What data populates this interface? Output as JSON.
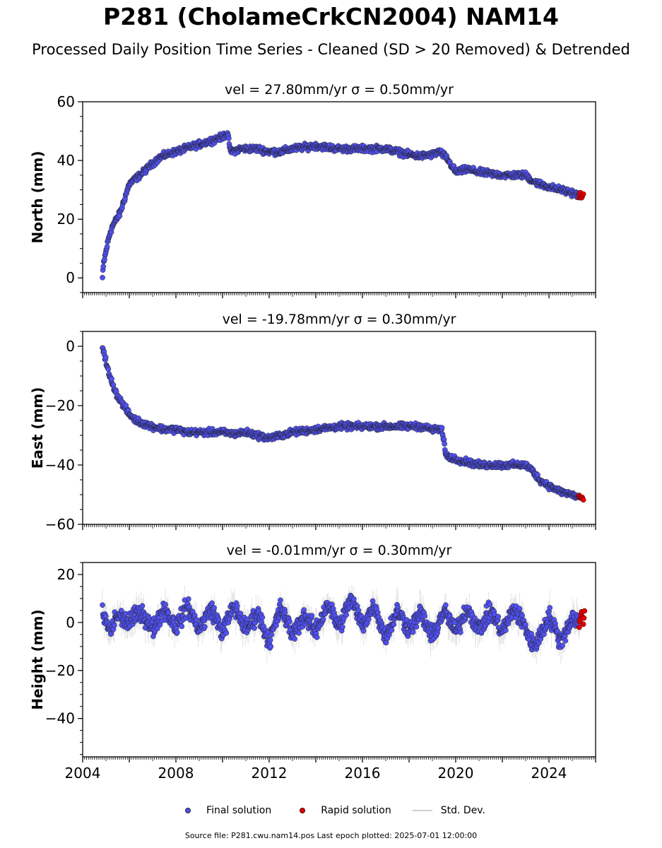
{
  "title": "P281 (CholameCrkCN2004) NAM14",
  "subtitle": "Processed Daily Position Time Series - Cleaned (SD > 20 Removed) & Detrended",
  "colors": {
    "final": "#5050f0",
    "rapid": "#e00000",
    "stddev": "#cccccc",
    "edge": "#222222"
  },
  "legend": {
    "final": "Final solution",
    "rapid": "Rapid solution",
    "stddev": "Std. Dev."
  },
  "footer": "Source file: P281.cwu.nam14.pos  Last epoch plotted: 2025-07-01 12:00:00",
  "chart_data": [
    {
      "type": "scatter",
      "component": "north",
      "title": "vel = 27.80mm/yr   σ = 0.50mm/yr",
      "ylabel": "North (mm)",
      "xlim": [
        2004.0,
        2026.0
      ],
      "ylim": [
        -5,
        60
      ],
      "yticks": [
        0,
        20,
        40,
        60
      ],
      "xticks": [
        2004,
        2008,
        2012,
        2016,
        2020,
        2024
      ],
      "show_xtick_labels": false,
      "series": [
        {
          "kind": "final",
          "x": [
            2004.85,
            2004.9,
            2005.0,
            2005.1,
            2005.2,
            2005.3,
            2005.45,
            2005.6,
            2006.0,
            2006.3,
            2006.6,
            2007.0,
            2007.3,
            2007.6,
            2008.0,
            2008.4,
            2008.8,
            2009.2,
            2009.6,
            2010.0,
            2010.2,
            2010.35,
            2010.8,
            2011.5,
            2012.0,
            2012.5,
            2013.0,
            2014.0,
            2015.0,
            2016.0,
            2017.0,
            2017.5,
            2018.0,
            2018.5,
            2019.0,
            2019.3,
            2019.6,
            2020.0,
            2020.5,
            2021.0,
            2022.0,
            2022.5,
            2023.0,
            2023.3,
            2023.6,
            2024.0,
            2024.5,
            2025.0,
            2025.3
          ],
          "y": [
            0,
            5,
            9,
            13,
            16,
            18,
            20,
            22,
            32,
            34,
            36,
            39,
            41,
            42,
            43,
            44,
            45,
            46,
            47,
            48,
            49.5,
            43,
            44,
            44,
            43,
            43,
            44,
            45,
            44,
            44,
            44,
            43,
            42,
            41.5,
            42,
            43,
            41,
            36,
            37,
            36,
            35,
            35,
            35,
            33,
            32,
            31,
            30,
            29,
            28
          ],
          "sd": 1.2
        },
        {
          "kind": "rapid",
          "x": [
            2025.3,
            2025.36,
            2025.42,
            2025.48
          ],
          "y": [
            27.8,
            28.3,
            27.5,
            28.0
          ],
          "sd": 1.0
        }
      ]
    },
    {
      "type": "scatter",
      "component": "east",
      "title": "vel = -19.78mm/yr   σ = 0.30mm/yr",
      "ylabel": "East (mm)",
      "xlim": [
        2004.0,
        2026.0
      ],
      "ylim": [
        -60,
        5
      ],
      "yticks": [
        0,
        -20,
        -40,
        -60
      ],
      "xticks": [
        2004,
        2008,
        2012,
        2016,
        2020,
        2024
      ],
      "show_xtick_labels": false,
      "series": [
        {
          "kind": "final",
          "x": [
            2004.85,
            2004.95,
            2005.05,
            2005.15,
            2005.3,
            2005.45,
            2005.6,
            2006.0,
            2006.3,
            2006.6,
            2007.0,
            2007.5,
            2008.0,
            2008.5,
            2009.0,
            2009.5,
            2010.0,
            2010.5,
            2011.0,
            2011.5,
            2012.0,
            2012.5,
            2013.0,
            2013.5,
            2014.0,
            2014.5,
            2015.0,
            2015.5,
            2016.0,
            2016.5,
            2017.0,
            2017.5,
            2018.0,
            2018.5,
            2019.0,
            2019.4,
            2019.6,
            2020.0,
            2020.5,
            2021.0,
            2021.5,
            2022.0,
            2022.5,
            2023.0,
            2023.3,
            2023.6,
            2024.0,
            2024.5,
            2025.0,
            2025.3
          ],
          "y": [
            0,
            -3,
            -7,
            -10,
            -13,
            -16,
            -18,
            -23,
            -25,
            -26,
            -27,
            -28,
            -28,
            -29,
            -29,
            -29,
            -29,
            -29.5,
            -29,
            -30,
            -31,
            -30,
            -29,
            -28.5,
            -28,
            -27.5,
            -27,
            -27,
            -27,
            -27,
            -27,
            -27,
            -27,
            -27,
            -28,
            -28,
            -37,
            -38,
            -39,
            -40,
            -40,
            -40,
            -40,
            -40,
            -42,
            -45,
            -47,
            -49,
            -50,
            -51
          ],
          "sd": 1.1
        },
        {
          "kind": "rapid",
          "x": [
            2025.3,
            2025.36,
            2025.42,
            2025.48
          ],
          "y": [
            -50.5,
            -51.5,
            -51.0,
            -51.8
          ],
          "sd": 0.8
        }
      ]
    },
    {
      "type": "scatter",
      "component": "height",
      "title": "vel = -0.01mm/yr   σ = 0.30mm/yr",
      "ylabel": "Height (mm)",
      "xlim": [
        2004.0,
        2026.0
      ],
      "ylim": [
        -56,
        25
      ],
      "yticks": [
        20,
        0,
        -20,
        -40
      ],
      "xticks": [
        2004,
        2008,
        2012,
        2016,
        2020,
        2024
      ],
      "show_xtick_labels": true,
      "series": [
        {
          "kind": "final",
          "x": [
            2004.85,
            2005.0,
            2005.2,
            2005.45,
            2006.0,
            2006.5,
            2007.0,
            2007.5,
            2008.0,
            2008.5,
            2009.0,
            2009.5,
            2010.0,
            2010.5,
            2011.0,
            2011.5,
            2012.0,
            2012.5,
            2013.0,
            2013.5,
            2014.0,
            2014.5,
            2015.0,
            2015.5,
            2016.0,
            2016.5,
            2017.0,
            2017.5,
            2018.0,
            2018.5,
            2019.0,
            2019.5,
            2020.0,
            2020.5,
            2021.0,
            2021.5,
            2022.0,
            2022.5,
            2023.0,
            2023.3,
            2023.6,
            2024.0,
            2024.5,
            2025.0,
            2025.3
          ],
          "y": [
            4,
            0,
            -4,
            3,
            0,
            5,
            -3,
            6,
            -2,
            7,
            -3,
            6,
            -4,
            7,
            -3,
            4,
            -8,
            6,
            -5,
            3,
            -4,
            8,
            -2,
            10,
            -1,
            7,
            -6,
            5,
            -3,
            4,
            -6,
            5,
            -4,
            6,
            -3,
            5,
            -4,
            6,
            -2,
            -10,
            -6,
            3,
            -8,
            2,
            0
          ],
          "sd": 5.0
        },
        {
          "kind": "rapid",
          "x": [
            2025.3,
            2025.36,
            2025.42,
            2025.48,
            2025.54
          ],
          "y": [
            -2,
            2,
            5,
            -1,
            7
          ],
          "sd": 3.0
        }
      ]
    }
  ]
}
